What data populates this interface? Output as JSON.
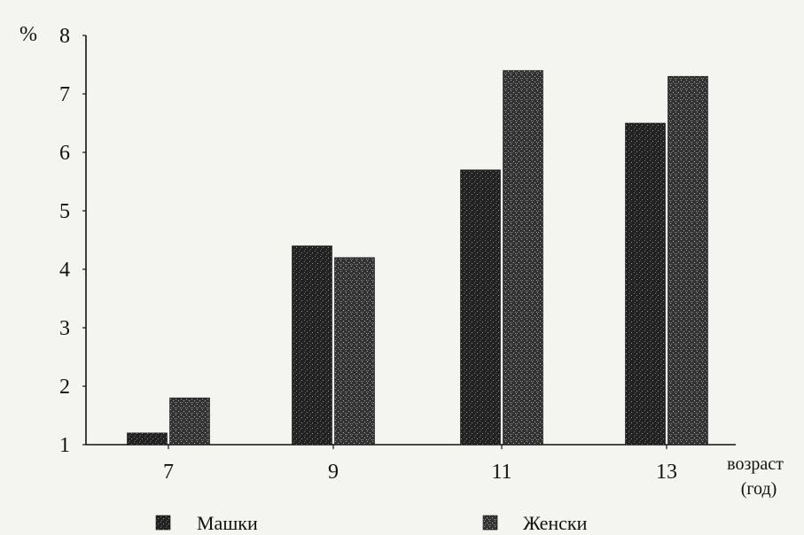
{
  "chart_data": {
    "type": "bar",
    "ylabel": "%",
    "xlabel": "возраст (год)",
    "xlabel_lines": [
      "возраст",
      "(год)"
    ],
    "categories": [
      "7",
      "9",
      "11",
      "13"
    ],
    "ylim": [
      1,
      8
    ],
    "yticks": [
      1,
      2,
      3,
      4,
      5,
      6,
      7,
      8
    ],
    "grid": false,
    "legend_position": "bottom",
    "series": [
      {
        "name": "Машки",
        "values": [
          1.2,
          4.4,
          5.7,
          6.5
        ],
        "color": "#262626"
      },
      {
        "name": "Женски",
        "values": [
          1.8,
          4.2,
          7.4,
          7.3
        ],
        "color": "#3a3a3a"
      }
    ]
  }
}
